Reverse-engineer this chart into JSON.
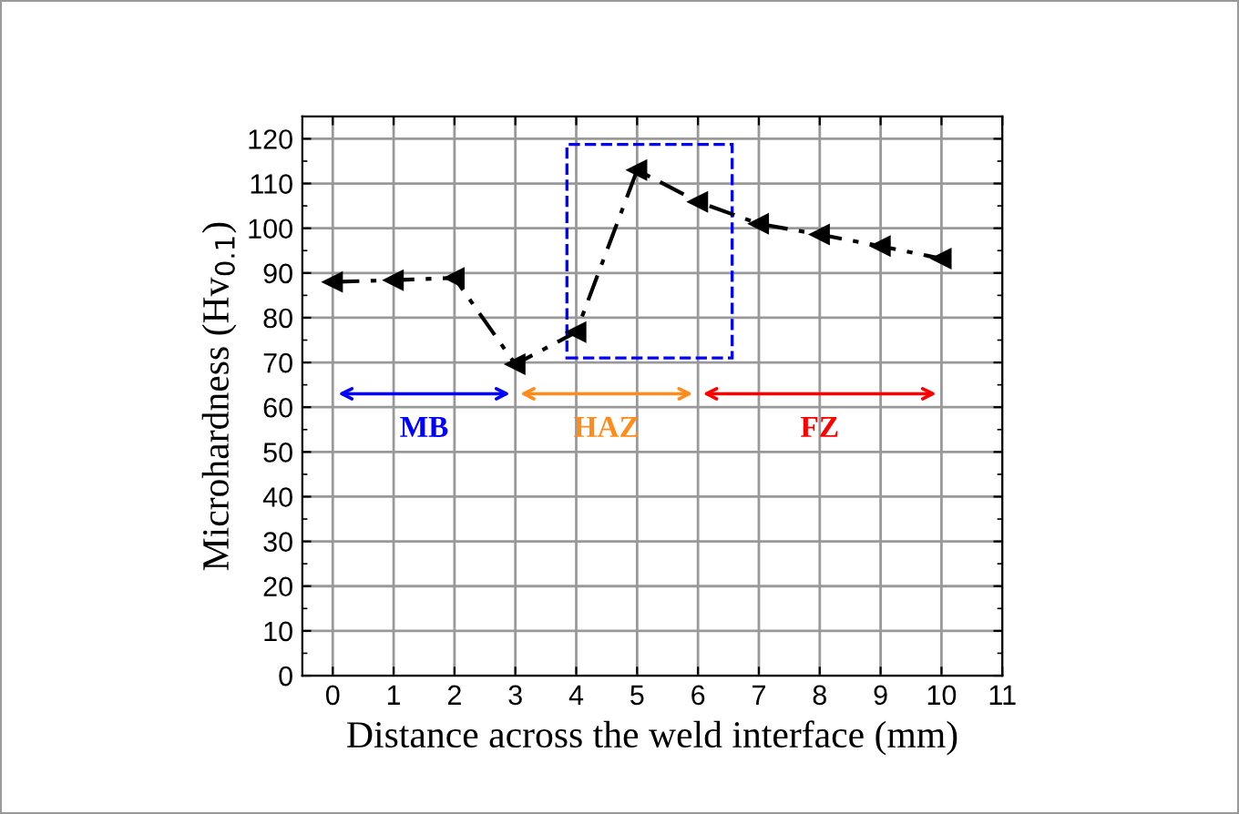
{
  "chart_data": {
    "type": "line",
    "xlabel": "Distance across the weld interface (mm)",
    "ylabel": "Microhardness (Hv$_{0.1}$)",
    "x": [
      0,
      1,
      2,
      3,
      4,
      5,
      6,
      7,
      8,
      9,
      10
    ],
    "series": [
      {
        "color": "#000000",
        "values": [
          88,
          88.4,
          88.9,
          69.6,
          76.8,
          113,
          105.9,
          101,
          98.6,
          96,
          93.2
        ]
      }
    ],
    "xlim": [
      -0.5,
      11
    ],
    "xticks": [
      0,
      1,
      2,
      3,
      4,
      5,
      6,
      7,
      8,
      9,
      10,
      11
    ],
    "ylim": [
      0,
      125
    ],
    "yticks": [
      0,
      10,
      20,
      30,
      40,
      50,
      60,
      70,
      80,
      90,
      100,
      110,
      120
    ],
    "grid": true,
    "marker": "triangle",
    "line_style": "dashed",
    "legend": false,
    "annotations": [
      "MB",
      "HAZ",
      "FZ"
    ]
  }
}
